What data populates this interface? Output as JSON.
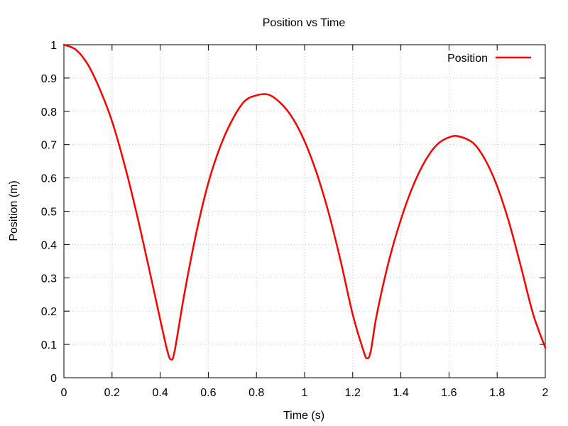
{
  "chart_data": {
    "type": "line",
    "title": "Position vs Time",
    "xlabel": "Time (s)",
    "ylabel": "Position (m)",
    "xlim": [
      0,
      2
    ],
    "ylim": [
      0,
      1
    ],
    "x_ticks": [
      0,
      0.2,
      0.4,
      0.6,
      0.8,
      1,
      1.2,
      1.4,
      1.6,
      1.8,
      2
    ],
    "y_ticks": [
      0,
      0.1,
      0.2,
      0.3,
      0.4,
      0.5,
      0.6,
      0.7,
      0.8,
      0.9,
      1
    ],
    "x_tick_labels": [
      "0",
      "0.2",
      "0.4",
      "0.6",
      "0.8",
      "1",
      "1.2",
      "1.4",
      "1.6",
      "1.8",
      "2"
    ],
    "y_tick_labels": [
      "0",
      "0.1",
      "0.2",
      "0.3",
      "0.4",
      "0.5",
      "0.6",
      "0.7",
      "0.8",
      "0.9",
      "1"
    ],
    "grid": true,
    "legend": {
      "position": "top-right"
    },
    "series": [
      {
        "name": "Position",
        "color": "#ff0000",
        "x": [
          0,
          0.05,
          0.1,
          0.15,
          0.2,
          0.25,
          0.3,
          0.35,
          0.4,
          0.43,
          0.445,
          0.46,
          0.5,
          0.55,
          0.6,
          0.65,
          0.7,
          0.75,
          0.8,
          0.85,
          0.9,
          0.95,
          1.0,
          1.05,
          1.1,
          1.15,
          1.2,
          1.245,
          1.26,
          1.275,
          1.3,
          1.35,
          1.4,
          1.45,
          1.5,
          1.55,
          1.6,
          1.64,
          1.7,
          1.75,
          1.8,
          1.85,
          1.9,
          1.95,
          2.0
        ],
        "y": [
          1.0,
          0.985,
          0.94,
          0.865,
          0.77,
          0.645,
          0.5,
          0.34,
          0.175,
          0.08,
          0.055,
          0.08,
          0.25,
          0.435,
          0.585,
          0.695,
          0.775,
          0.83,
          0.848,
          0.85,
          0.825,
          0.78,
          0.71,
          0.615,
          0.495,
          0.35,
          0.19,
          0.08,
          0.058,
          0.08,
          0.19,
          0.35,
          0.475,
          0.575,
          0.65,
          0.7,
          0.722,
          0.725,
          0.705,
          0.655,
          0.575,
          0.465,
          0.33,
          0.19,
          0.09
        ]
      }
    ]
  }
}
